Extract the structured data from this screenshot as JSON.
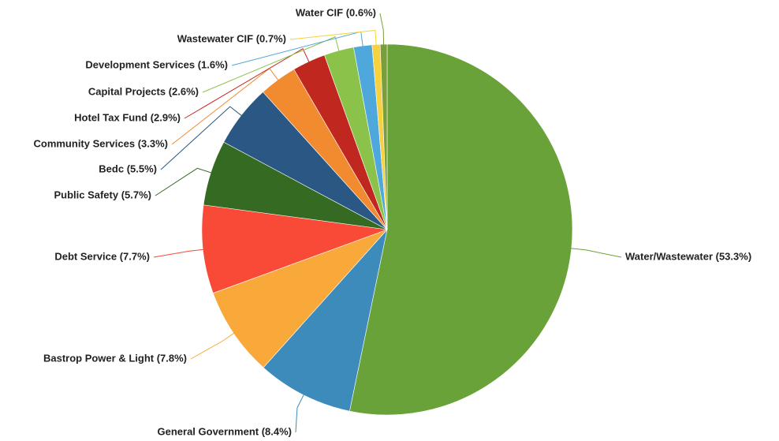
{
  "chart_data": {
    "type": "pie",
    "categories": [
      "Water/Wastewater (53.3%)",
      "General Government (8.4%)",
      "Bastrop Power & Light (7.8%)",
      "Debt Service (7.7%)",
      "Public Safety (5.7%)",
      "Bedc (5.5%)",
      "Community Services (3.3%)",
      "Hotel Tax Fund (2.9%)",
      "Capital Projects (2.6%)",
      "Development Services (1.6%)",
      "Wastewater CIF (0.7%)",
      "Water CIF (0.6%)"
    ],
    "values": [
      53.3,
      8.4,
      7.8,
      7.7,
      5.7,
      5.5,
      3.3,
      2.9,
      2.6,
      1.6,
      0.7,
      0.6
    ],
    "colors": [
      "#6aa23a",
      "#3d8bbb",
      "#f8a93a",
      "#f84a36",
      "#356a22",
      "#2a5783",
      "#f28a30",
      "#c0281f",
      "#8bc34a",
      "#4ea8db",
      "#f7d23e",
      "#7a9f3a"
    ]
  }
}
